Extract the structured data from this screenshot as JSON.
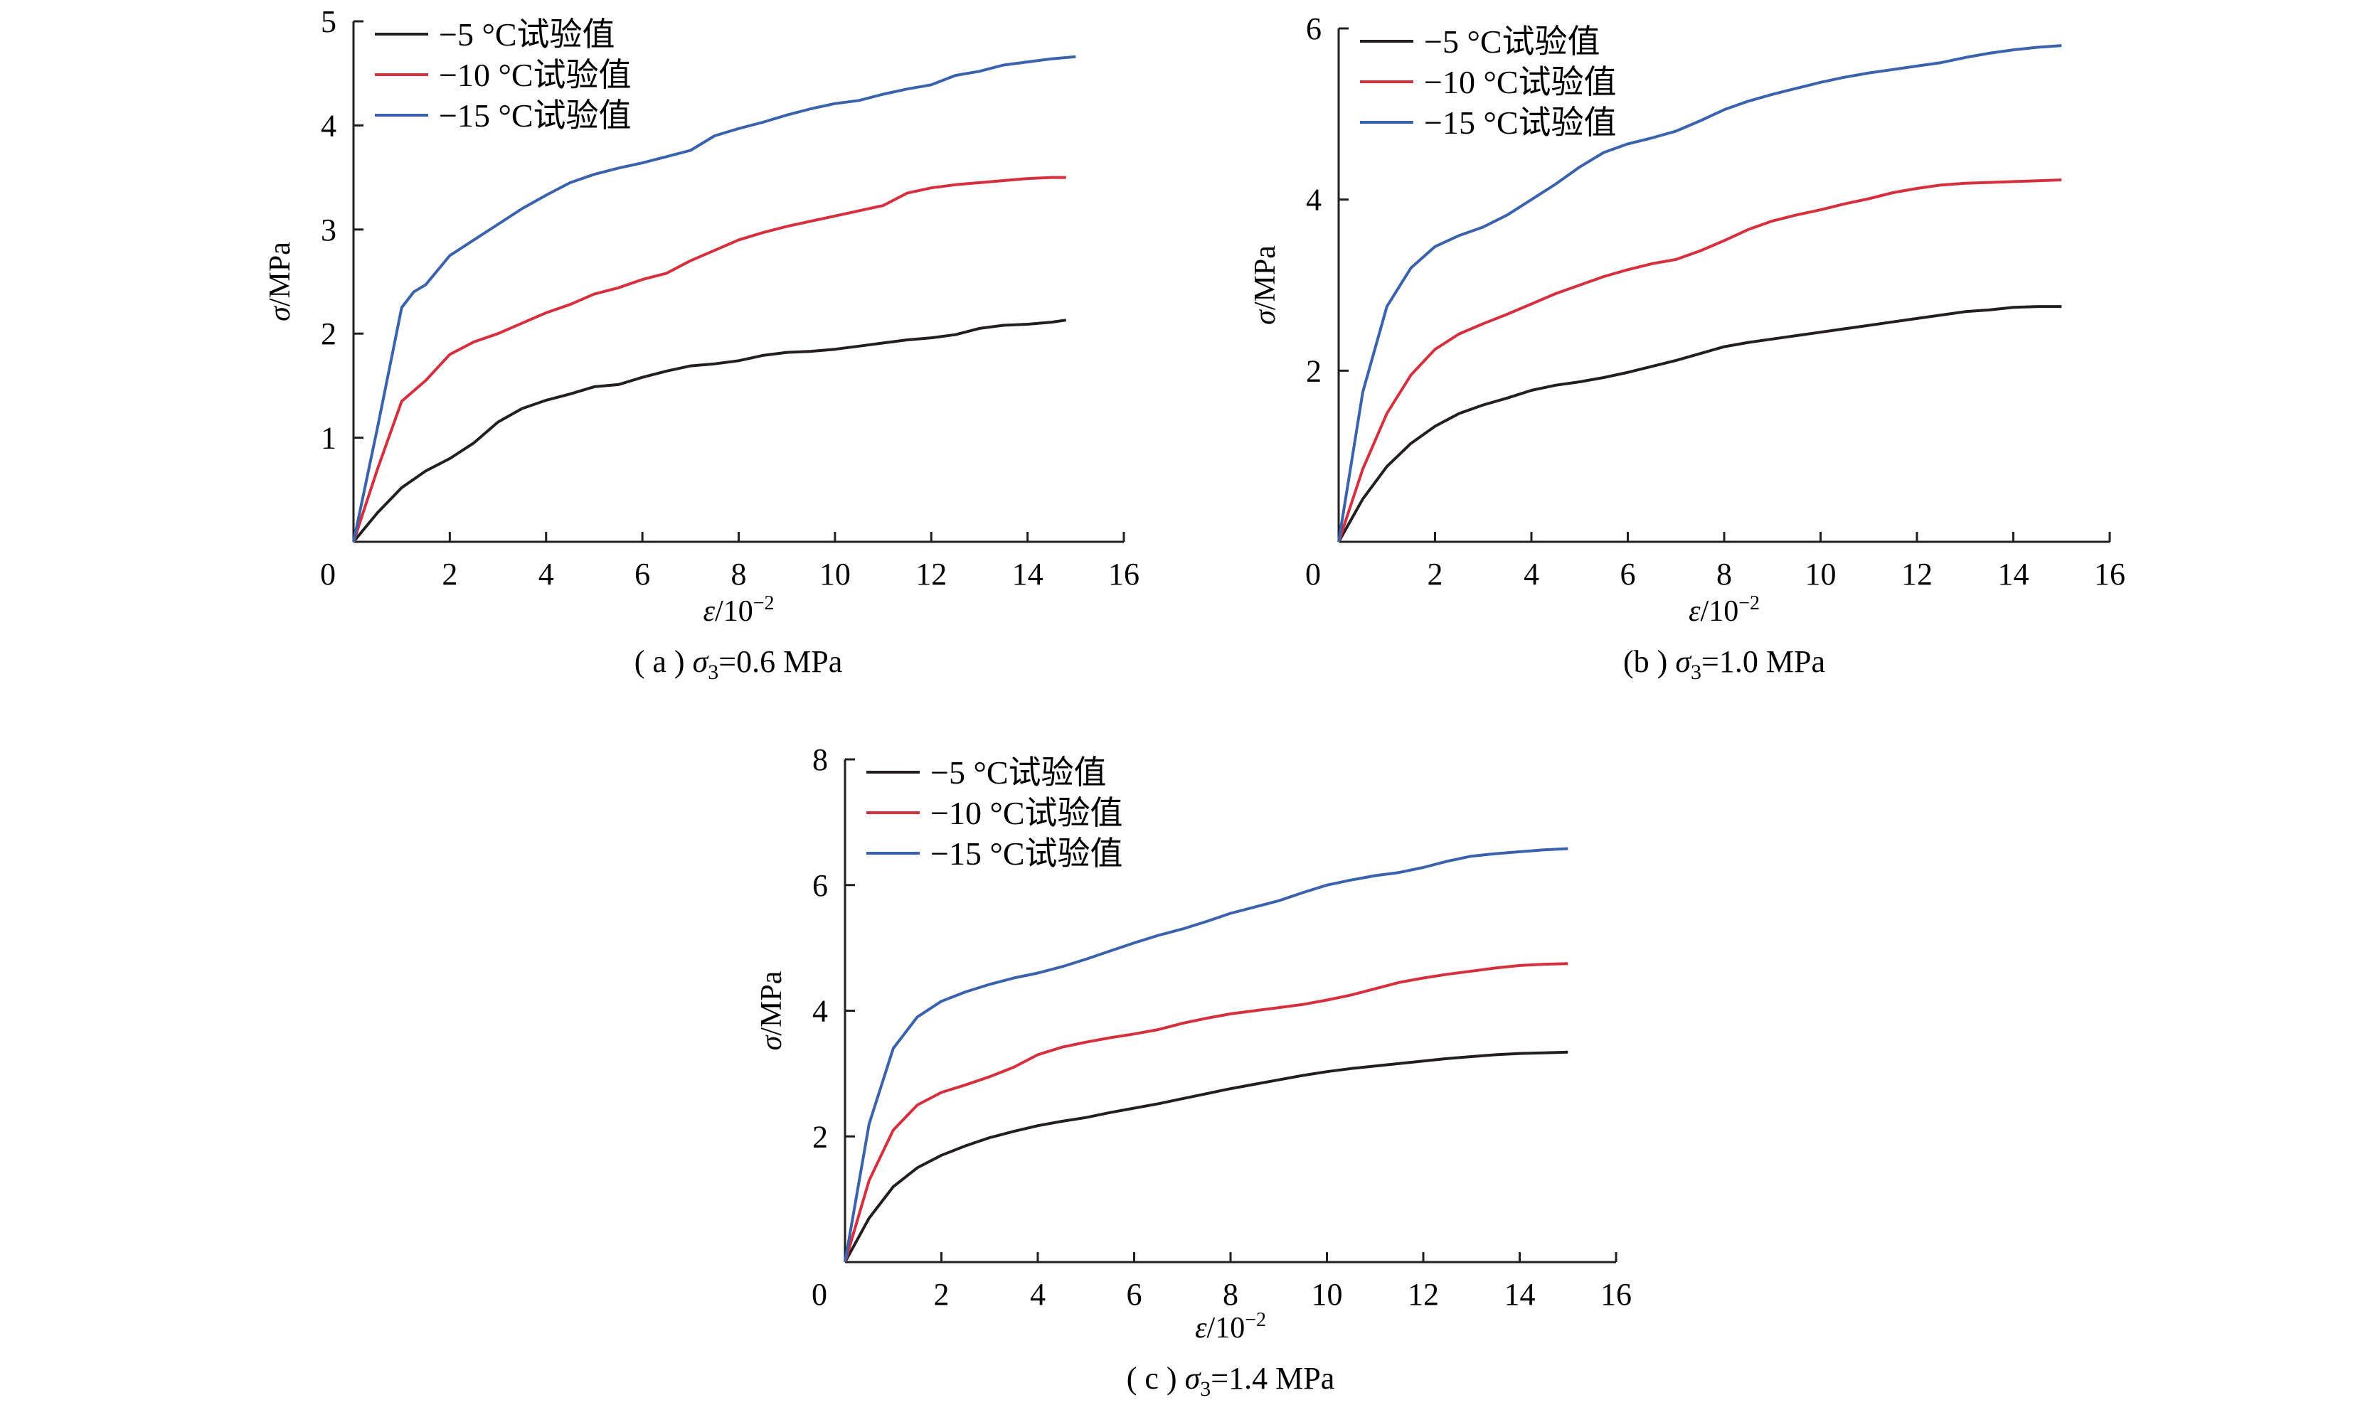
{
  "figure": {
    "panels": [
      {
        "id": "a",
        "caption_prefix": "( a )",
        "caption_symbol": "σ",
        "caption_sub": "3",
        "caption_value": "=0.6 MPa",
        "xlabel_sym": "ε",
        "xlabel_unit": "/10",
        "xlabel_exp": "−2",
        "ylabel_sym": "σ",
        "ylabel_unit": "/MPa",
        "xticks": [
          "0",
          "2",
          "4",
          "6",
          "8",
          "10",
          "12",
          "14",
          "16"
        ],
        "yticks": [
          "1",
          "2",
          "3",
          "4",
          "5"
        ],
        "legend": [
          "−5 °C试验值",
          "−10 °C试验值",
          "−15 °C试验值"
        ]
      },
      {
        "id": "b",
        "caption_prefix": "(b )",
        "caption_symbol": "σ",
        "caption_sub": "3",
        "caption_value": "=1.0 MPa",
        "xlabel_sym": "ε",
        "xlabel_unit": "/10",
        "xlabel_exp": "−2",
        "ylabel_sym": "σ",
        "ylabel_unit": "/MPa",
        "xticks": [
          "0",
          "2",
          "4",
          "6",
          "8",
          "10",
          "12",
          "14",
          "16"
        ],
        "yticks": [
          "2",
          "4",
          "6"
        ],
        "legend": [
          "−5 °C试验值",
          "−10 °C试验值",
          "−15 °C试验值"
        ]
      },
      {
        "id": "c",
        "caption_prefix": "( c )",
        "caption_symbol": "σ",
        "caption_sub": "3",
        "caption_value": "=1.4 MPa",
        "xlabel_sym": "ε",
        "xlabel_unit": "/10",
        "xlabel_exp": "−2",
        "ylabel_sym": "σ",
        "ylabel_unit": "/MPa",
        "xticks": [
          "0",
          "2",
          "4",
          "6",
          "8",
          "10",
          "12",
          "14",
          "16"
        ],
        "yticks": [
          "2",
          "4",
          "6",
          "8"
        ],
        "legend": [
          "−5 °C试验值",
          "−10 °C试验值",
          "−15 °C试验值"
        ]
      }
    ]
  },
  "chart_data": [
    {
      "type": "line",
      "title": "( a ) σ3=0.6 MPa",
      "xlabel": "ε/10−2",
      "ylabel": "σ/MPa",
      "xlim": [
        0,
        16
      ],
      "ylim": [
        0,
        5
      ],
      "grid": false,
      "legend_position": "top-left",
      "colors": [
        "#231f20",
        "#d6303f",
        "#3a62ad"
      ],
      "series": [
        {
          "name": "−5 °C试验值",
          "x": [
            0,
            0.5,
            1,
            1.5,
            2,
            2.5,
            3,
            3.5,
            4,
            4.5,
            5,
            5.5,
            6,
            6.5,
            7,
            7.5,
            8,
            8.5,
            9,
            9.5,
            10,
            10.5,
            11,
            11.5,
            12,
            12.5,
            13,
            13.5,
            14,
            14.5,
            14.8
          ],
          "y": [
            0,
            0.28,
            0.52,
            0.68,
            0.8,
            0.95,
            1.15,
            1.28,
            1.36,
            1.42,
            1.49,
            1.51,
            1.58,
            1.64,
            1.69,
            1.71,
            1.74,
            1.79,
            1.82,
            1.83,
            1.85,
            1.88,
            1.91,
            1.94,
            1.96,
            1.99,
            2.05,
            2.08,
            2.09,
            2.11,
            2.13
          ]
        },
        {
          "name": "−10 °C试验值",
          "x": [
            0,
            0.5,
            1,
            1.5,
            2,
            2.5,
            3,
            3.5,
            4,
            4.5,
            5,
            5.5,
            6,
            6.5,
            7,
            7.5,
            8,
            8.5,
            9,
            9.5,
            10,
            10.5,
            11,
            11.5,
            12,
            12.5,
            13,
            13.5,
            14,
            14.5,
            14.8
          ],
          "y": [
            0,
            0.7,
            1.35,
            1.55,
            1.8,
            1.92,
            2.0,
            2.1,
            2.2,
            2.28,
            2.38,
            2.44,
            2.52,
            2.58,
            2.7,
            2.8,
            2.9,
            2.97,
            3.03,
            3.08,
            3.13,
            3.18,
            3.23,
            3.35,
            3.4,
            3.43,
            3.45,
            3.47,
            3.49,
            3.5,
            3.5
          ]
        },
        {
          "name": "−15 °C试验值",
          "x": [
            0,
            0.5,
            1,
            1.25,
            1.5,
            2,
            2.5,
            3,
            3.5,
            4,
            4.5,
            5,
            5.5,
            6,
            6.5,
            7,
            7.5,
            8,
            8.5,
            9,
            9.5,
            10,
            10.5,
            11,
            11.5,
            12,
            12.5,
            13,
            13.5,
            14,
            14.5,
            15
          ],
          "y": [
            0,
            1.1,
            2.25,
            2.4,
            2.47,
            2.75,
            2.9,
            3.05,
            3.2,
            3.33,
            3.45,
            3.53,
            3.59,
            3.64,
            3.7,
            3.76,
            3.9,
            3.97,
            4.03,
            4.1,
            4.16,
            4.21,
            4.24,
            4.3,
            4.35,
            4.39,
            4.48,
            4.52,
            4.58,
            4.61,
            4.64,
            4.66
          ]
        }
      ]
    },
    {
      "type": "line",
      "title": "(b ) σ3=1.0 MPa",
      "xlabel": "ε/10−2",
      "ylabel": "σ/MPa",
      "xlim": [
        0,
        16
      ],
      "ylim": [
        0,
        6
      ],
      "grid": false,
      "legend_position": "top-left",
      "colors": [
        "#231f20",
        "#d6303f",
        "#3a62ad"
      ],
      "series": [
        {
          "name": "−5 °C试验值",
          "x": [
            0,
            0.5,
            1,
            1.5,
            2,
            2.5,
            3,
            3.5,
            4,
            4.5,
            5,
            5.5,
            6,
            6.5,
            7,
            7.5,
            8,
            8.5,
            9,
            9.5,
            10,
            10.5,
            11,
            11.5,
            12,
            12.5,
            13,
            13.5,
            14,
            14.5,
            15
          ],
          "y": [
            0,
            0.5,
            0.88,
            1.15,
            1.35,
            1.5,
            1.6,
            1.68,
            1.77,
            1.83,
            1.87,
            1.92,
            1.98,
            2.05,
            2.12,
            2.2,
            2.28,
            2.33,
            2.37,
            2.41,
            2.45,
            2.49,
            2.53,
            2.57,
            2.61,
            2.65,
            2.69,
            2.71,
            2.74,
            2.75,
            2.75
          ]
        },
        {
          "name": "−10 °C试验值",
          "x": [
            0,
            0.5,
            1,
            1.5,
            2,
            2.5,
            3,
            3.5,
            4,
            4.5,
            5,
            5.5,
            6,
            6.5,
            7,
            7.5,
            8,
            8.5,
            9,
            9.5,
            10,
            10.5,
            11,
            11.5,
            12,
            12.5,
            13,
            13.5,
            14,
            14.5,
            15
          ],
          "y": [
            0,
            0.85,
            1.5,
            1.95,
            2.25,
            2.43,
            2.55,
            2.66,
            2.78,
            2.9,
            3.0,
            3.1,
            3.18,
            3.25,
            3.3,
            3.4,
            3.52,
            3.65,
            3.75,
            3.82,
            3.88,
            3.95,
            4.01,
            4.08,
            4.13,
            4.17,
            4.19,
            4.2,
            4.21,
            4.22,
            4.23
          ]
        },
        {
          "name": "−15 °C试验值",
          "x": [
            0,
            0.5,
            1,
            1.5,
            2,
            2.5,
            3,
            3.5,
            4,
            4.5,
            5,
            5.5,
            6,
            6.5,
            7,
            7.5,
            8,
            8.5,
            9,
            9.5,
            10,
            10.5,
            11,
            11.5,
            12,
            12.5,
            13,
            13.5,
            14,
            14.5,
            15
          ],
          "y": [
            0,
            1.75,
            2.75,
            3.2,
            3.45,
            3.58,
            3.68,
            3.82,
            4.0,
            4.18,
            4.38,
            4.55,
            4.65,
            4.72,
            4.8,
            4.92,
            5.05,
            5.15,
            5.23,
            5.3,
            5.37,
            5.43,
            5.48,
            5.52,
            5.56,
            5.6,
            5.66,
            5.71,
            5.75,
            5.78,
            5.8
          ]
        }
      ]
    },
    {
      "type": "line",
      "title": "( c ) σ3=1.4 MPa",
      "xlabel": "ε/10−2",
      "ylabel": "σ/MPa",
      "xlim": [
        0,
        16
      ],
      "ylim": [
        0,
        8
      ],
      "grid": false,
      "legend_position": "top-left",
      "colors": [
        "#231f20",
        "#d6303f",
        "#3a62ad"
      ],
      "series": [
        {
          "name": "−5 °C试验值",
          "x": [
            0,
            0.5,
            1,
            1.5,
            2,
            2.5,
            3,
            3.5,
            4,
            4.5,
            5,
            5.5,
            6,
            6.5,
            7,
            7.5,
            8,
            8.5,
            9,
            9.5,
            10,
            10.5,
            11,
            11.5,
            12,
            12.5,
            13,
            13.5,
            14,
            14.5,
            15
          ],
          "y": [
            0,
            0.7,
            1.2,
            1.5,
            1.7,
            1.85,
            1.98,
            2.08,
            2.17,
            2.24,
            2.3,
            2.38,
            2.45,
            2.52,
            2.6,
            2.68,
            2.76,
            2.83,
            2.9,
            2.97,
            3.03,
            3.08,
            3.12,
            3.16,
            3.2,
            3.24,
            3.27,
            3.3,
            3.32,
            3.33,
            3.34
          ]
        },
        {
          "name": "−10 °C试验值",
          "x": [
            0,
            0.5,
            1,
            1.5,
            2,
            2.5,
            3,
            3.5,
            4,
            4.5,
            5,
            5.5,
            6,
            6.5,
            7,
            7.5,
            8,
            8.5,
            9,
            9.5,
            10,
            10.5,
            11,
            11.5,
            12,
            12.5,
            13,
            13.5,
            14,
            14.5,
            15
          ],
          "y": [
            0,
            1.3,
            2.1,
            2.5,
            2.7,
            2.82,
            2.95,
            3.1,
            3.3,
            3.42,
            3.5,
            3.57,
            3.63,
            3.7,
            3.8,
            3.88,
            3.95,
            4.0,
            4.05,
            4.1,
            4.17,
            4.25,
            4.35,
            4.45,
            4.52,
            4.58,
            4.63,
            4.68,
            4.72,
            4.74,
            4.75
          ]
        },
        {
          "name": "−15 °C试验值",
          "x": [
            0,
            0.5,
            1,
            1.5,
            2,
            2.5,
            3,
            3.5,
            4,
            4.5,
            5,
            5.5,
            6,
            6.5,
            7,
            7.5,
            8,
            8.5,
            9,
            9.5,
            10,
            10.5,
            11,
            11.5,
            12,
            12.5,
            13,
            13.5,
            14,
            14.5,
            15
          ],
          "y": [
            0,
            2.2,
            3.4,
            3.9,
            4.15,
            4.3,
            4.42,
            4.52,
            4.6,
            4.7,
            4.82,
            4.95,
            5.08,
            5.2,
            5.3,
            5.42,
            5.55,
            5.65,
            5.75,
            5.88,
            6.0,
            6.08,
            6.15,
            6.2,
            6.28,
            6.38,
            6.46,
            6.5,
            6.53,
            6.56,
            6.58
          ]
        }
      ]
    }
  ]
}
